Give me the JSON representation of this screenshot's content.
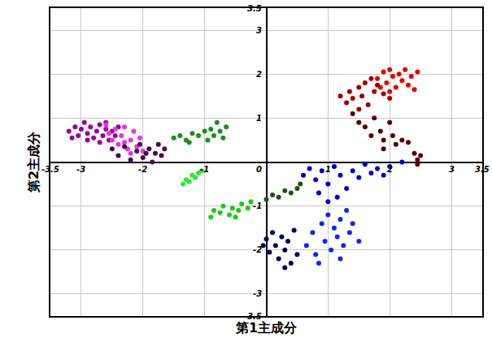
{
  "chart_data": {
    "type": "scatter",
    "x_label": "第1主成分",
    "y_label": "第2主成分",
    "xlim": [
      -3.5,
      3.5
    ],
    "ylim": [
      -3.5,
      3.5
    ],
    "xticks": [
      -3.5,
      -3,
      -2,
      -1,
      1,
      2,
      3,
      3.5
    ],
    "yticks": [
      3.5,
      3,
      2,
      1,
      0,
      -1,
      -2,
      -3,
      -3.5
    ],
    "grid": true,
    "marker": "circle",
    "series": [
      {
        "color": "#9b009b",
        "x": [
          -3.2,
          -3.1,
          -3.05,
          -3.0,
          -2.95,
          -2.9,
          -2.85,
          -2.8,
          -2.75,
          -2.7,
          -2.65,
          -2.6,
          -2.55,
          -2.5,
          -2.45,
          -3.15,
          -2.9,
          -2.7,
          -2.6,
          -2.4
        ],
        "y": [
          0.7,
          0.8,
          0.6,
          0.75,
          0.9,
          0.65,
          0.8,
          0.55,
          0.7,
          0.85,
          0.6,
          0.75,
          0.5,
          0.7,
          0.6,
          0.55,
          0.5,
          0.45,
          0.9,
          0.8
        ]
      },
      {
        "color": "#e633e6",
        "x": [
          -2.6,
          -2.55,
          -2.5,
          -2.45,
          -2.4,
          -2.35,
          -2.3,
          -2.25,
          -2.2,
          -2.15,
          -2.1,
          -2.05,
          -2.0,
          -2.3,
          -2.2
        ],
        "y": [
          0.85,
          0.65,
          0.5,
          0.75,
          0.4,
          0.6,
          0.8,
          0.3,
          0.5,
          0.7,
          0.35,
          0.55,
          0.25,
          0.45,
          0.2
        ]
      },
      {
        "color": "#4d0a4d",
        "x": [
          -2.5,
          -2.4,
          -2.3,
          -2.2,
          -2.1,
          -2.0,
          -1.9,
          -1.85,
          -1.8,
          -1.75,
          -1.7,
          -1.65,
          -2.05,
          -1.95
        ],
        "y": [
          0.3,
          0.15,
          0.35,
          0.05,
          0.25,
          0.1,
          0.3,
          0.0,
          0.2,
          0.4,
          0.15,
          0.3,
          0.4,
          0.2
        ]
      },
      {
        "color": "#1e8c1e",
        "x": [
          -1.5,
          -1.4,
          -1.3,
          -1.2,
          -1.1,
          -1.0,
          -0.9,
          -0.85,
          -0.8,
          -0.75,
          -0.7,
          -0.65,
          -1.25,
          -0.95
        ],
        "y": [
          0.55,
          0.6,
          0.5,
          0.65,
          0.6,
          0.7,
          0.75,
          0.6,
          0.9,
          0.7,
          0.55,
          0.8,
          0.45,
          0.5
        ]
      },
      {
        "color": "#33e633",
        "x": [
          -1.35,
          -1.3,
          -1.25,
          -1.2,
          -1.15,
          -1.1,
          -1.05
        ],
        "y": [
          -0.5,
          -0.4,
          -0.45,
          -0.3,
          -0.35,
          -0.25,
          -0.2
        ]
      },
      {
        "color": "#1ec81e",
        "x": [
          -0.9,
          -0.85,
          -0.75,
          -0.7,
          -0.6,
          -0.55,
          -0.45,
          -0.4,
          -0.3,
          -0.25,
          -0.5
        ],
        "y": [
          -1.25,
          -1.1,
          -1.15,
          -1.0,
          -1.2,
          -1.05,
          -1.1,
          -0.95,
          -1.05,
          -0.9,
          -1.25
        ]
      },
      {
        "color": "#e60000",
        "x": [
          1.8,
          1.9,
          1.95,
          2.0,
          2.05,
          2.1,
          2.15,
          2.2,
          2.25,
          2.3,
          2.35,
          2.4,
          2.45,
          1.85,
          2.0
        ],
        "y": [
          1.9,
          2.05,
          1.8,
          2.1,
          1.95,
          1.7,
          2.0,
          1.85,
          2.1,
          1.75,
          1.95,
          1.65,
          2.05,
          1.7,
          1.6
        ]
      },
      {
        "color": "#a00000",
        "x": [
          1.2,
          1.3,
          1.35,
          1.4,
          1.5,
          1.55,
          1.6,
          1.7,
          1.75,
          1.8,
          1.5,
          1.65,
          1.9,
          2.0
        ],
        "y": [
          1.5,
          1.35,
          1.6,
          1.45,
          1.7,
          1.5,
          1.8,
          1.9,
          1.6,
          1.75,
          1.2,
          1.3,
          1.55,
          1.45
        ]
      },
      {
        "color": "#5a0000",
        "x": [
          1.4,
          1.5,
          1.6,
          1.7,
          1.75,
          1.85,
          1.9,
          2.0,
          2.05,
          2.1,
          2.2,
          2.3,
          2.4,
          2.45,
          2.5,
          1.9,
          2.45
        ],
        "y": [
          1.1,
          0.9,
          0.8,
          0.6,
          1.0,
          0.7,
          0.5,
          0.9,
          0.6,
          0.4,
          0.5,
          0.45,
          0.2,
          0.05,
          0.15,
          0.3,
          -0.05
        ]
      },
      {
        "color": "#0000c8",
        "x": [
          0.6,
          0.7,
          0.8,
          0.9,
          1.0,
          1.1,
          1.2,
          1.3,
          1.4,
          1.5,
          1.6,
          1.7,
          1.8,
          1.9,
          2.0,
          2.2,
          1.15,
          1.0,
          0.85
        ],
        "y": [
          -0.3,
          -0.15,
          -0.4,
          -0.2,
          -0.5,
          -0.1,
          -0.3,
          -0.6,
          -0.2,
          -0.35,
          -0.05,
          -0.25,
          -0.15,
          -0.3,
          -0.1,
          0.0,
          -0.8,
          -0.9,
          -0.7
        ]
      },
      {
        "color": "#1428e6",
        "x": [
          0.65,
          0.75,
          0.8,
          0.9,
          0.95,
          1.0,
          1.05,
          1.1,
          1.15,
          1.2,
          1.25,
          1.3,
          1.35,
          1.4,
          1.5,
          0.85,
          1.2
        ],
        "y": [
          -1.9,
          -1.6,
          -2.1,
          -1.4,
          -1.8,
          -1.2,
          -2.0,
          -1.5,
          -1.7,
          -1.3,
          -1.9,
          -1.1,
          -1.6,
          -1.4,
          -1.8,
          -2.3,
          -2.2
        ]
      },
      {
        "color": "#00005a",
        "x": [
          -0.05,
          0.0,
          0.05,
          0.1,
          0.15,
          0.2,
          0.25,
          0.3,
          0.35,
          0.4,
          0.45,
          0.5,
          0.3
        ],
        "y": [
          -1.9,
          -1.75,
          -2.05,
          -1.6,
          -1.9,
          -2.2,
          -1.7,
          -2.0,
          -1.8,
          -2.3,
          -1.55,
          -2.1,
          -2.4
        ]
      },
      {
        "color": "#1e501e",
        "x": [
          0.0,
          0.1,
          0.2,
          0.3,
          0.4,
          0.5,
          0.55
        ],
        "y": [
          -0.85,
          -0.75,
          -0.8,
          -0.65,
          -0.7,
          -0.6,
          -0.5
        ]
      }
    ]
  }
}
